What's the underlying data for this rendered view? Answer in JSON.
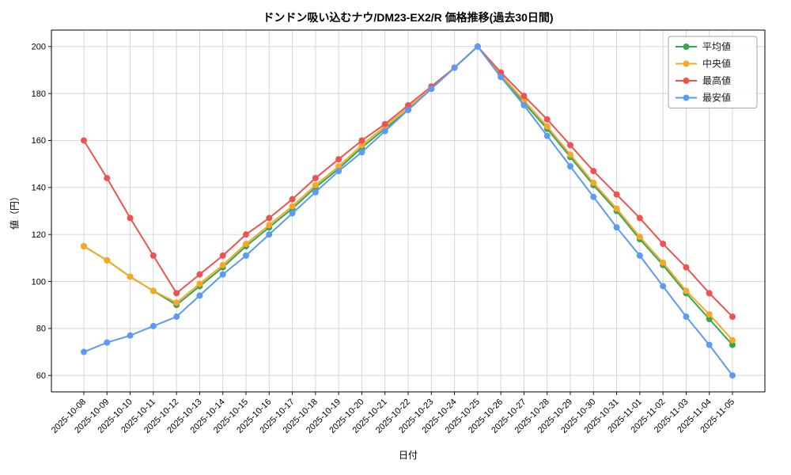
{
  "chart_data": {
    "type": "line",
    "title": "ドンドン吸い込むナウ/DM23-EX2/R 価格推移(過去30日間)",
    "xlabel": "日付",
    "ylabel": "値（円）",
    "grid": true,
    "legend_position": "upper-right",
    "x_tick_rotation": 45,
    "ylim": [
      53,
      207
    ],
    "yticks": [
      60,
      80,
      100,
      120,
      140,
      160,
      180,
      200
    ],
    "x": [
      "2025-10-08",
      "2025-10-09",
      "2025-10-10",
      "2025-10-11",
      "2025-10-12",
      "2025-10-13",
      "2025-10-14",
      "2025-10-15",
      "2025-10-16",
      "2025-10-17",
      "2025-10-18",
      "2025-10-19",
      "2025-10-20",
      "2025-10-21",
      "2025-10-22",
      "2025-10-23",
      "2025-10-24",
      "2025-10-25",
      "2025-10-26",
      "2025-10-27",
      "2025-10-28",
      "2025-10-29",
      "2025-10-30",
      "2025-10-31",
      "2025-11-01",
      "2025-11-02",
      "2025-11-03",
      "2025-11-04",
      "2025-11-05"
    ],
    "series": [
      {
        "key": "average",
        "name": "平均値",
        "color": "#33a852",
        "values": [
          115,
          109,
          102,
          96,
          90,
          98,
          106,
          115,
          123,
          131,
          140,
          148,
          157,
          165,
          173,
          182,
          191,
          200,
          188,
          176,
          165,
          153,
          141,
          130,
          118,
          107,
          95,
          84,
          73
        ]
      },
      {
        "key": "median",
        "name": "中央値",
        "color": "#f9a825",
        "values": [
          115,
          109,
          102,
          96,
          91,
          99,
          107,
          116,
          124,
          132,
          141,
          149,
          158,
          166,
          174,
          182,
          191,
          200,
          188,
          177,
          166,
          154,
          142,
          131,
          119,
          108,
          96,
          86,
          75
        ]
      },
      {
        "key": "max",
        "name": "最高値",
        "color": "#ef5350",
        "values": [
          160,
          144,
          127,
          111,
          95,
          103,
          111,
          120,
          127,
          135,
          144,
          152,
          160,
          167,
          175,
          183,
          191,
          200,
          189,
          179,
          169,
          158,
          147,
          137,
          127,
          116,
          106,
          95,
          85
        ]
      },
      {
        "key": "min",
        "name": "最安値",
        "color": "#5b9bf5",
        "values": [
          70,
          74,
          77,
          81,
          85,
          94,
          103,
          111,
          120,
          129,
          138,
          147,
          155,
          164,
          173,
          182,
          191,
          200,
          187,
          175,
          162,
          149,
          136,
          123,
          111,
          98,
          85,
          73,
          60
        ]
      }
    ]
  }
}
